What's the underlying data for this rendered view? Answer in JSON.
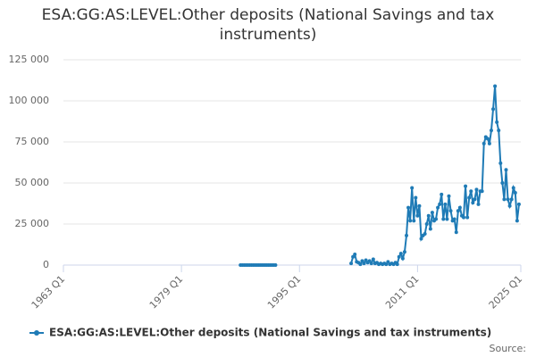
{
  "chart_data": {
    "type": "line",
    "title": "ESA:GG:AS:LEVEL:Other deposits (National Savings and tax instruments)",
    "source": "Source:",
    "x": [
      1987,
      1987.25,
      1987.5,
      1987.75,
      1988,
      1988.25,
      1988.5,
      1988.75,
      1989,
      1989.25,
      1989.5,
      1989.75,
      1990,
      1990.25,
      1990.5,
      1990.75,
      1991,
      1991.25,
      1991.5,
      1991.75,
      1997,
      2002,
      2002.25,
      2002.5,
      2002.75,
      2003,
      2003.25,
      2003.5,
      2003.75,
      2004,
      2004.25,
      2004.5,
      2004.75,
      2005,
      2005.25,
      2005.5,
      2005.75,
      2006,
      2006.25,
      2006.5,
      2006.75,
      2007,
      2007.25,
      2007.5,
      2007.75,
      2008,
      2008.25,
      2008.5,
      2008.75,
      2009,
      2009.25,
      2009.5,
      2009.75,
      2010,
      2010.25,
      2010.5,
      2010.75,
      2011,
      2011.25,
      2011.5,
      2011.75,
      2012,
      2012.25,
      2012.5,
      2012.75,
      2013,
      2013.25,
      2013.5,
      2013.75,
      2014,
      2014.25,
      2014.5,
      2014.75,
      2015,
      2015.25,
      2015.5,
      2015.75,
      2016,
      2016.25,
      2016.5,
      2016.75,
      2017,
      2017.25,
      2017.5,
      2017.75,
      2018,
      2018.25,
      2018.5,
      2018.75,
      2019,
      2019.25,
      2019.5,
      2019.75,
      2020,
      2020.25,
      2020.5,
      2020.75,
      2021,
      2021.25,
      2021.5,
      2021.75,
      2022,
      2022.25,
      2022.5,
      2022.75,
      2023,
      2023.25,
      2023.5,
      2023.75,
      2024,
      2024.25,
      2024.5,
      2024.75
    ],
    "series": [
      {
        "name": "ESA:GG:AS:LEVEL:Other deposits (National Savings and tax instruments)",
        "color": "#1f7bb6",
        "values": [
          0,
          0,
          0,
          0,
          0,
          0,
          0,
          0,
          0,
          0,
          0,
          0,
          0,
          0,
          0,
          0,
          0,
          0,
          0,
          0,
          null,
          1000,
          5000,
          6500,
          2000,
          1500,
          500,
          2500,
          1000,
          3000,
          1500,
          2500,
          1000,
          3500,
          1000,
          1500,
          500,
          1000,
          500,
          1000,
          500,
          2000,
          500,
          1000,
          500,
          1500,
          500,
          5000,
          7000,
          4000,
          8000,
          18000,
          35000,
          27000,
          47000,
          27000,
          41000,
          30000,
          36000,
          16000,
          18000,
          19000,
          25000,
          30000,
          22000,
          32000,
          27000,
          28000,
          35000,
          37000,
          43000,
          28000,
          37000,
          28000,
          42000,
          33000,
          27000,
          28000,
          20000,
          33000,
          35000,
          30000,
          29000,
          48000,
          29000,
          41000,
          45000,
          38000,
          40000,
          46000,
          37000,
          45000,
          45000,
          74000,
          78000,
          77000,
          74000,
          82000,
          95000,
          109000,
          87000,
          82000,
          62000,
          50000,
          40000,
          58000,
          40000,
          36000,
          40000,
          47000,
          44000,
          27000,
          37000
        ]
      }
    ],
    "xlim": [
      1963,
      2025
    ],
    "xticks": [
      {
        "value": 1963,
        "label": "1963 Q1"
      },
      {
        "value": 1979,
        "label": "1979 Q1"
      },
      {
        "value": 1995,
        "label": "1995 Q1"
      },
      {
        "value": 2011,
        "label": "2011 Q1"
      },
      {
        "value": 2025,
        "label": "2025 Q1"
      }
    ],
    "ylim": [
      0,
      125000
    ],
    "yticks": [
      0,
      {
        "value": 25000,
        "label": "25 000"
      },
      {
        "value": 50000,
        "label": "50 000"
      },
      {
        "value": 75000,
        "label": "75 000"
      },
      {
        "value": 100000,
        "label": "100 000"
      },
      {
        "value": 125000,
        "label": "125 000"
      }
    ],
    "grid": true
  }
}
